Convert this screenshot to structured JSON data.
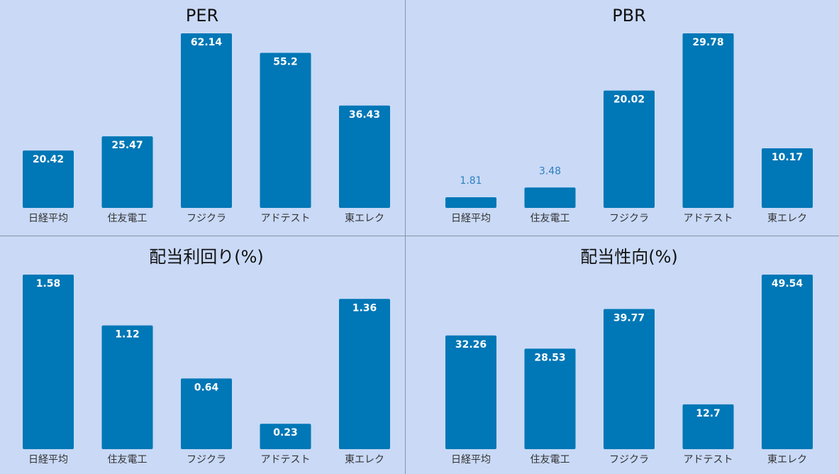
{
  "page": {
    "background": "#c9d9f6",
    "bar_color": "#0077b6",
    "divider_color": "#8a94a6"
  },
  "chart_data": [
    {
      "type": "bar",
      "title": "PER",
      "categories": [
        "日経平均",
        "住友電工",
        "フジクラ",
        "アドテスト",
        "東エレク"
      ],
      "values": [
        20.42,
        25.47,
        62.14,
        55.2,
        36.43
      ],
      "labels": [
        "20.42",
        "25.47",
        "62.14",
        "55.2",
        "36.43"
      ],
      "grid": false,
      "legend": "none"
    },
    {
      "type": "bar",
      "title": "PBR",
      "categories": [
        "日経平均",
        "住友電工",
        "フジクラ",
        "アドテスト",
        "東エレク"
      ],
      "values": [
        1.81,
        3.48,
        20.02,
        29.78,
        10.17
      ],
      "labels": [
        "1.81",
        "3.48",
        "20.02",
        "29.78",
        "10.17"
      ],
      "grid": false,
      "legend": "none"
    },
    {
      "type": "bar",
      "title": "配当利回り(%)",
      "categories": [
        "日経平均",
        "住友電工",
        "フジクラ",
        "アドテスト",
        "東エレク"
      ],
      "values": [
        1.58,
        1.12,
        0.64,
        0.23,
        1.36
      ],
      "labels": [
        "1.58",
        "1.12",
        "0.64",
        "0.23",
        "1.36"
      ],
      "grid": false,
      "legend": "none"
    },
    {
      "type": "bar",
      "title": "配当性向(%)",
      "categories": [
        "日経平均",
        "住友電工",
        "フジクラ",
        "アドテスト",
        "東エレク"
      ],
      "values": [
        32.26,
        28.53,
        39.77,
        12.7,
        49.54
      ],
      "labels": [
        "32.26",
        "28.53",
        "39.77",
        "12.7",
        "49.54"
      ],
      "grid": false,
      "legend": "none"
    }
  ]
}
